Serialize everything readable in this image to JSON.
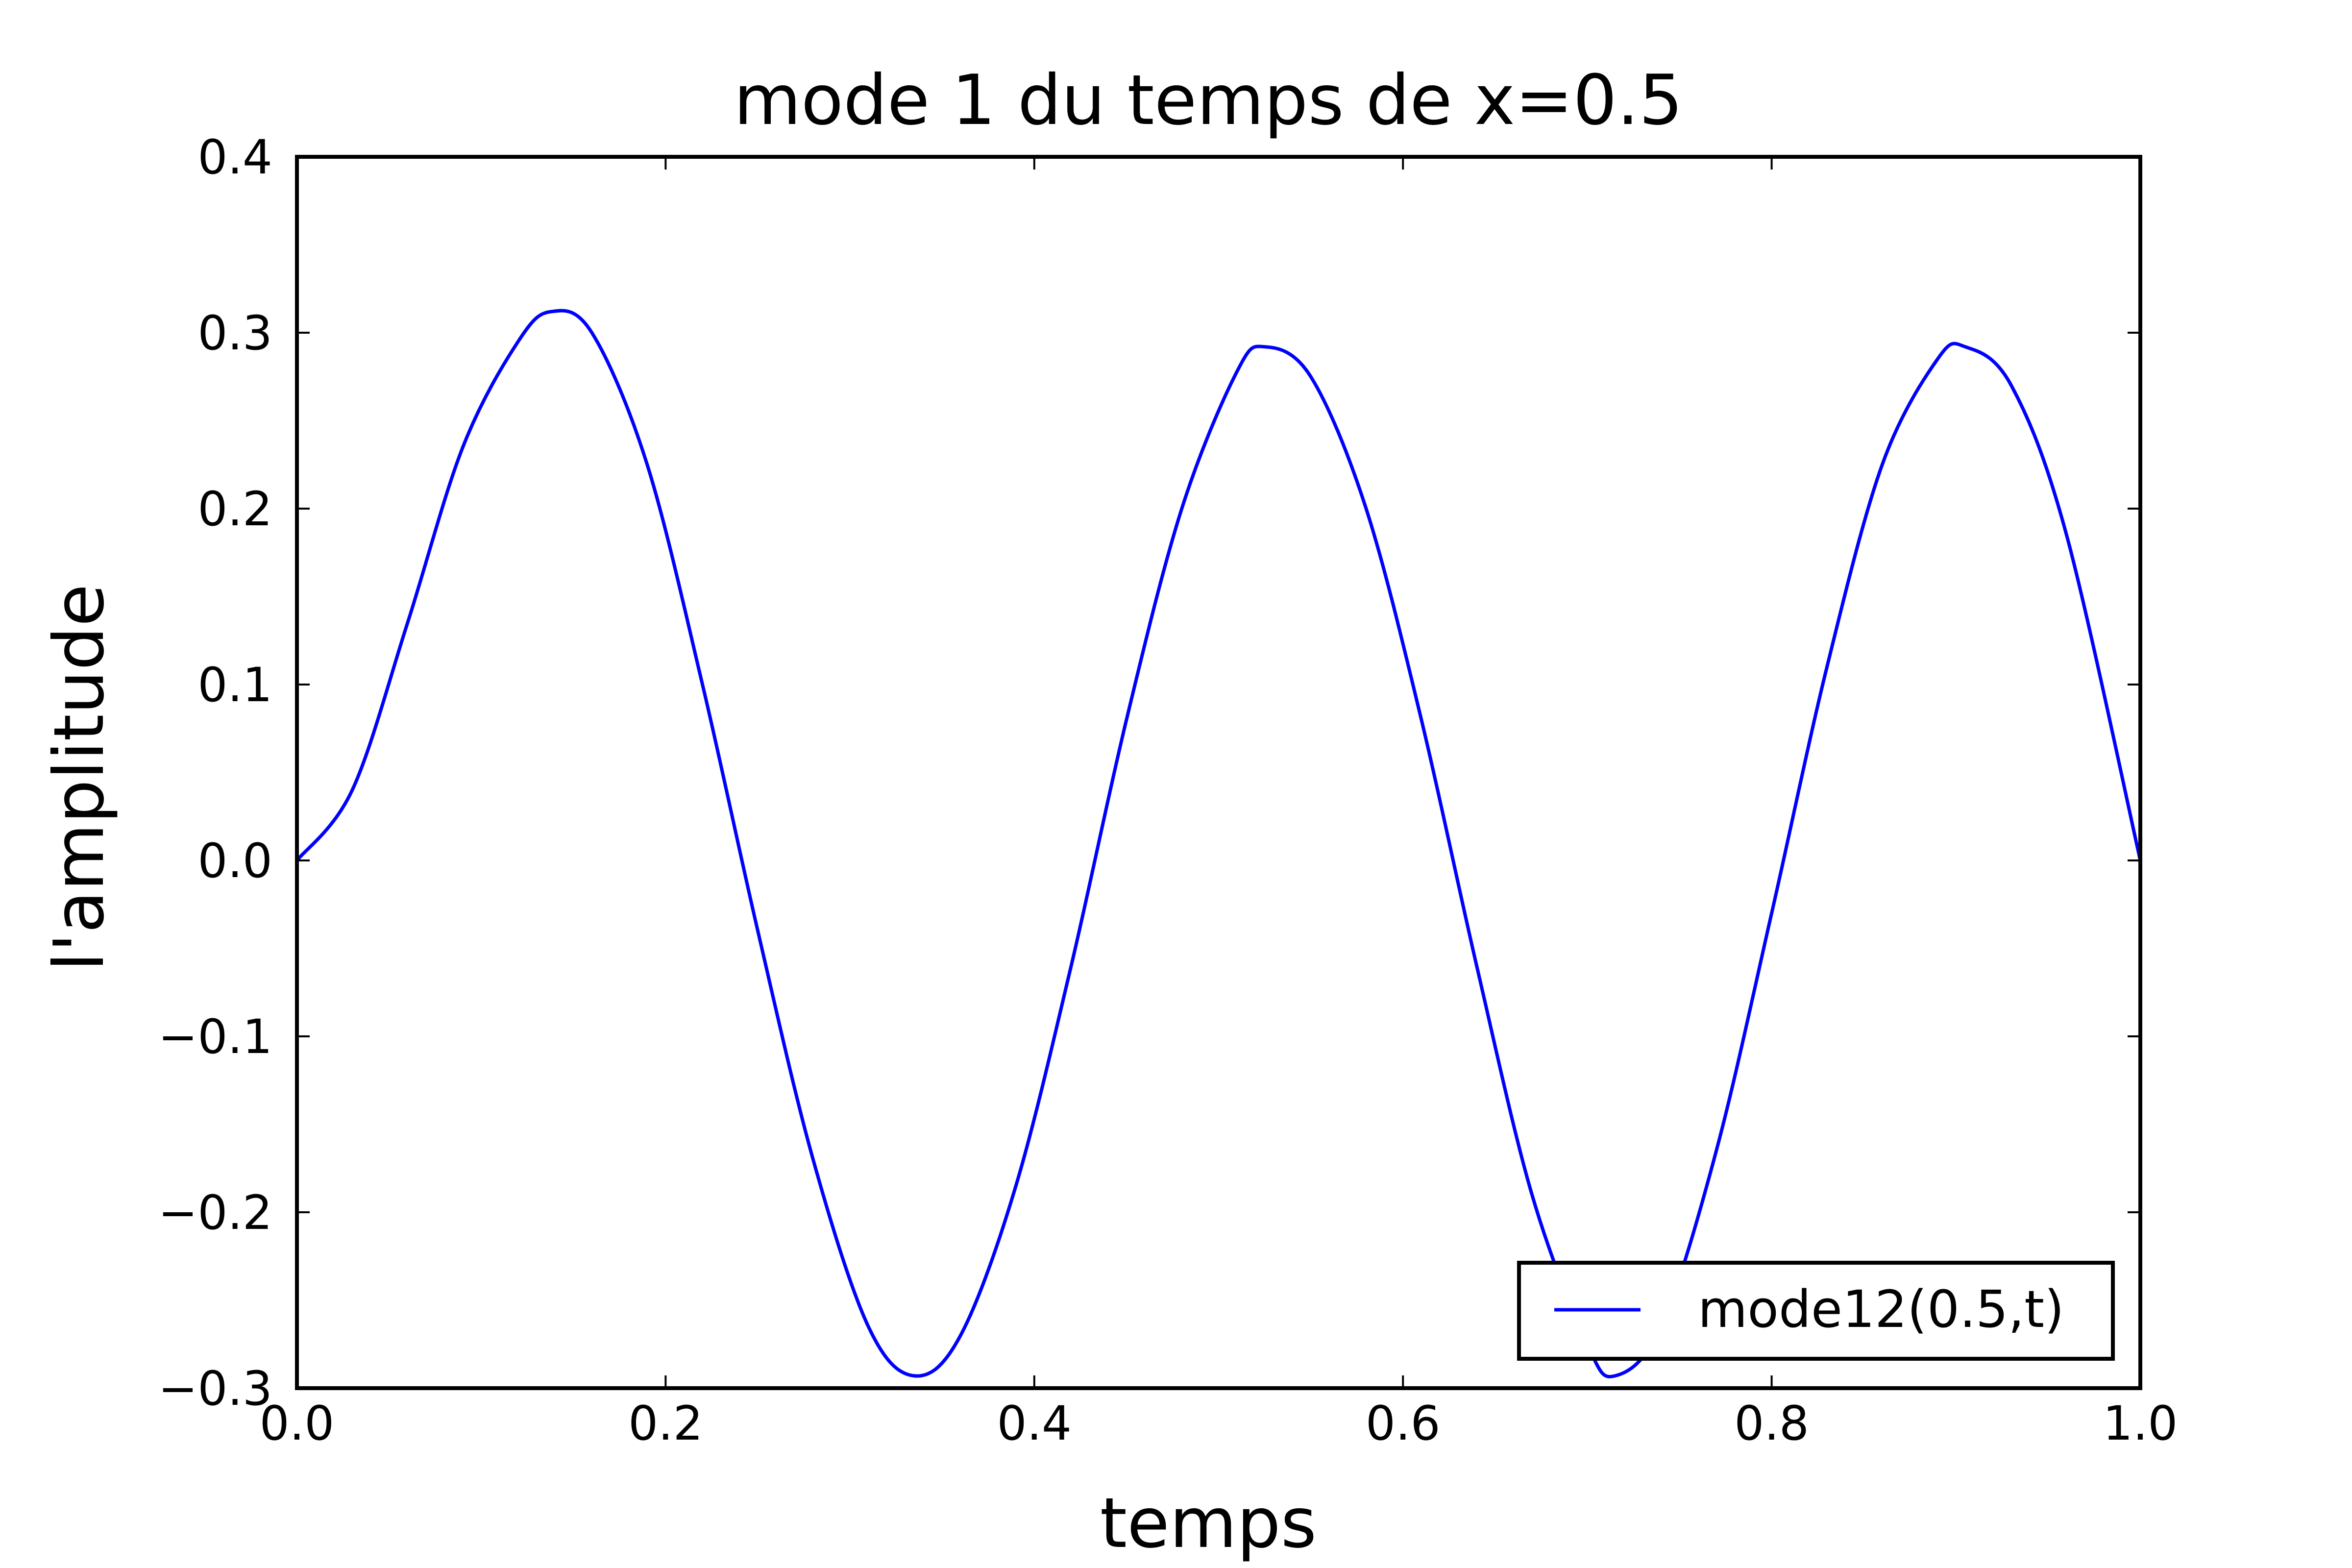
{
  "chart_data": {
    "type": "line",
    "title": "mode 1 du temps de x=0.5",
    "xlabel": "temps",
    "ylabel": "l'amplitude",
    "xlim": [
      0.0,
      1.0
    ],
    "ylim": [
      -0.3,
      0.4
    ],
    "xticks": [
      0.0,
      0.2,
      0.4,
      0.6,
      0.8,
      1.0
    ],
    "xtick_labels": [
      "0.0",
      "0.2",
      "0.4",
      "0.6",
      "0.8",
      "1.0"
    ],
    "yticks": [
      -0.3,
      -0.2,
      -0.1,
      0.0,
      0.1,
      0.2,
      0.3,
      0.4
    ],
    "ytick_labels": [
      "−0.3",
      "−0.2",
      "−0.1",
      "0.0",
      "0.1",
      "0.2",
      "0.3",
      "0.4"
    ],
    "grid": false,
    "legend": {
      "position": "lower-right"
    },
    "series": [
      {
        "name": "mode12(0.5,t)",
        "color": "#0000ff",
        "x": [
          0.0,
          0.03,
          0.06,
          0.09,
          0.12,
          0.138,
          0.16,
          0.19,
          0.22,
          0.25,
          0.28,
          0.31,
          0.335,
          0.36,
          0.39,
          0.42,
          0.45,
          0.48,
          0.51,
          0.525,
          0.55,
          0.58,
          0.61,
          0.64,
          0.67,
          0.7,
          0.715,
          0.74,
          0.77,
          0.8,
          0.83,
          0.86,
          0.89,
          0.905,
          0.93,
          0.96,
          1.0
        ],
        "y": [
          0.0,
          0.04,
          0.135,
          0.235,
          0.295,
          0.312,
          0.3,
          0.225,
          0.1,
          -0.04,
          -0.17,
          -0.265,
          -0.293,
          -0.27,
          -0.185,
          -0.06,
          0.08,
          0.2,
          0.278,
          0.292,
          0.275,
          0.2,
          0.08,
          -0.06,
          -0.19,
          -0.275,
          -0.293,
          -0.265,
          -0.165,
          -0.03,
          0.11,
          0.225,
          0.285,
          0.292,
          0.27,
          0.185,
          0.0
        ]
      }
    ]
  }
}
